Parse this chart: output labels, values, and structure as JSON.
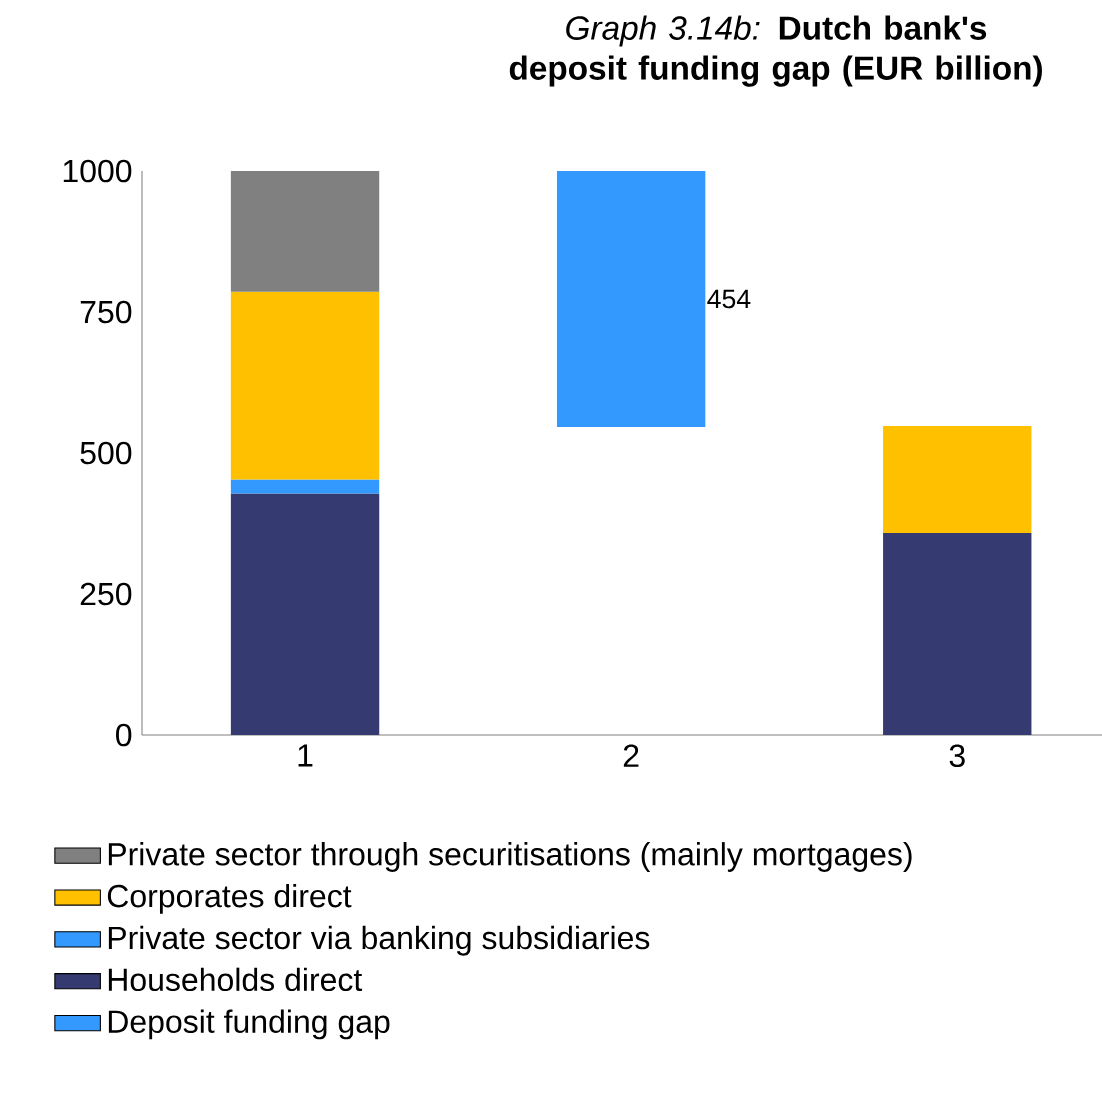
{
  "chart_data": {
    "type": "bar",
    "title": "*Graph 3.14b:* **Dutch bank's deposit funding gap (EUR billion)**",
    "categories": [
      "1",
      "2",
      "3"
    ],
    "stacked": true,
    "series": [
      {
        "name": "Households direct",
        "color": "#353a70",
        "values": [
          428,
          null,
          358
        ]
      },
      {
        "name": "Private sector via banking subsidiaries",
        "color": "#3399ff",
        "values": [
          25,
          null,
          null
        ]
      },
      {
        "name": "Corporates direct",
        "color": "#ffc000",
        "values": [
          333,
          null,
          190
        ]
      },
      {
        "name": "Private sector through securitisations (mainly mortgages)",
        "color": "#808080",
        "values": [
          214,
          null,
          null
        ]
      },
      {
        "name": "Deposit funding gap",
        "color": "#3399ff",
        "values": [
          null,
          454,
          null
        ],
        "base": [
          null,
          546,
          null
        ],
        "value_labels": [
          null,
          "454",
          null
        ]
      }
    ],
    "ylim": [
      0,
      1000
    ],
    "yticks": [
      0,
      250,
      500,
      750,
      1000
    ],
    "grid": false,
    "legend": "bottom"
  }
}
